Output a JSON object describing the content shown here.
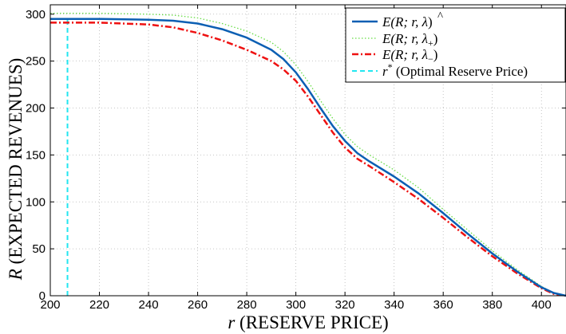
{
  "chart_data": {
    "type": "line",
    "title": "",
    "xlabel": {
      "var": "r",
      "text": " (RESERVE PRICE)"
    },
    "ylabel": {
      "var": "R",
      "text": " (EXPECTED REVENUES)"
    },
    "xlim": [
      200,
      410
    ],
    "ylim": [
      0,
      310
    ],
    "xticks": [
      "200",
      "220",
      "240",
      "260",
      "280",
      "300",
      "320",
      "340",
      "360",
      "380",
      "400"
    ],
    "yticks": [
      "0",
      "50",
      "100",
      "150",
      "200",
      "250",
      "300"
    ],
    "grid": true,
    "legend_position": "top-right",
    "series": [
      {
        "name": "E(R; r, λ̂)",
        "legend": {
          "main": "E(R; r, ",
          "lam": "λ",
          "mod": "hat",
          "close": ")"
        },
        "color": "#0b5fb3",
        "style": "solid",
        "x": [
          200,
          220,
          240,
          250,
          260,
          270,
          280,
          290,
          295,
          300,
          305,
          310,
          315,
          320,
          325,
          330,
          340,
          350,
          360,
          370,
          380,
          390,
          400,
          405,
          410
        ],
        "y": [
          295,
          295,
          294,
          293,
          290,
          284,
          275,
          262,
          252,
          238,
          220,
          200,
          181,
          165,
          152,
          143,
          127,
          109,
          88,
          66,
          45,
          26,
          9,
          3,
          0
        ]
      },
      {
        "name": "E(R; r, λ+)",
        "legend": {
          "main": "E(R; r, ",
          "lam": "λ",
          "mod": "+",
          "close": ")"
        },
        "color": "#66dd44",
        "style": "dotted",
        "x": [
          200,
          220,
          240,
          250,
          260,
          270,
          280,
          290,
          295,
          300,
          305,
          310,
          315,
          320,
          325,
          330,
          340,
          350,
          360,
          370,
          380,
          390,
          400,
          405,
          410
        ],
        "y": [
          301,
          301,
          300,
          299,
          296,
          290,
          282,
          270,
          260,
          246,
          228,
          208,
          189,
          172,
          159,
          150,
          134,
          115,
          92,
          70,
          48,
          28,
          10,
          3,
          0
        ]
      },
      {
        "name": "E(R; r, λ−)",
        "legend": {
          "main": "E(R; r, ",
          "lam": "λ",
          "mod": "−",
          "close": ")"
        },
        "color": "#ee1111",
        "style": "dashdot",
        "x": [
          200,
          220,
          240,
          250,
          260,
          270,
          280,
          290,
          295,
          300,
          305,
          310,
          315,
          320,
          325,
          330,
          340,
          350,
          360,
          370,
          380,
          390,
          400,
          405,
          410
        ],
        "y": [
          291,
          291,
          289,
          286,
          280,
          272,
          262,
          250,
          241,
          229,
          212,
          193,
          174,
          158,
          146,
          138,
          121,
          103,
          83,
          62,
          42,
          24,
          8,
          2,
          0
        ]
      }
    ],
    "reference_line": {
      "name": "r* (Optimal Reserve Price)",
      "legend": {
        "var": "r",
        "sup": "*",
        "text": " (Optimal Reserve Price)"
      },
      "x": 207,
      "color": "#22e6f0",
      "style": "dashed"
    }
  }
}
